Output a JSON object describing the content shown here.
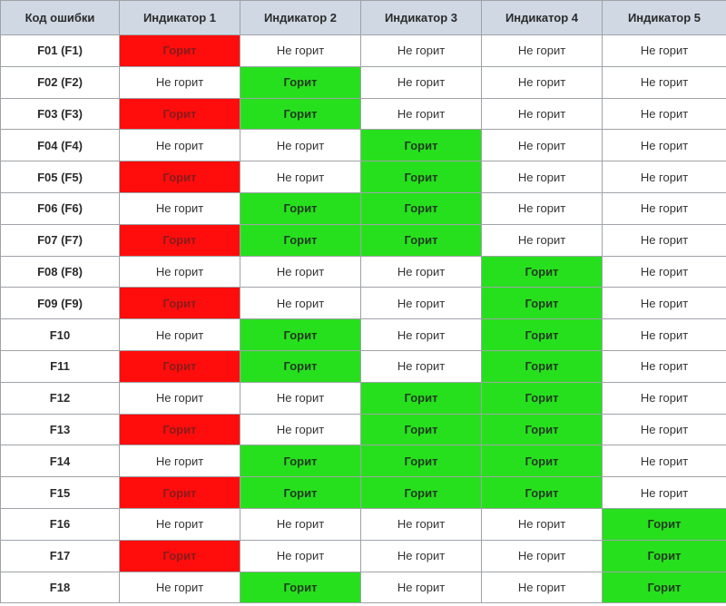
{
  "table": {
    "headers": [
      "Код ошибки",
      "Индикатор 1",
      "Индикатор 2",
      "Индикатор 3",
      "Индикатор 4",
      "Индикатор 5"
    ],
    "colors": {
      "header_bg": "#cfd8e3",
      "indicator1_on": "#ff0d0d",
      "indicators_on": "#27e01d",
      "off_bg": "#ffffff"
    },
    "rows": [
      {
        "code": "F01 (F1)",
        "cells": [
          "Горит",
          "Не горит",
          "Не горит",
          "Не горит",
          "Не горит"
        ]
      },
      {
        "code": "F02 (F2)",
        "cells": [
          "Не горит",
          "Горит",
          "Не горит",
          "Не горит",
          "Не горит"
        ]
      },
      {
        "code": "F03 (F3)",
        "cells": [
          "Горит",
          "Горит",
          "Не горит",
          "Не горит",
          "Не горит"
        ]
      },
      {
        "code": "F04 (F4)",
        "cells": [
          "Не горит",
          "Не горит",
          "Горит",
          "Не горит",
          "Не горит"
        ]
      },
      {
        "code": "F05 (F5)",
        "cells": [
          "Горит",
          "Не горит",
          "Горит",
          "Не горит",
          "Не горит"
        ]
      },
      {
        "code": "F06 (F6)",
        "cells": [
          "Не горит",
          "Горит",
          "Горит",
          "Не горит",
          "Не горит"
        ]
      },
      {
        "code": "F07 (F7)",
        "cells": [
          "Горит",
          "Горит",
          "Горит",
          "Не горит",
          "Не горит"
        ]
      },
      {
        "code": "F08 (F8)",
        "cells": [
          "Не горит",
          "Не горит",
          "Не горит",
          "Горит",
          "Не горит"
        ]
      },
      {
        "code": "F09 (F9)",
        "cells": [
          "Горит",
          "Не горит",
          "Не горит",
          "Горит",
          "Не горит"
        ]
      },
      {
        "code": "F10",
        "cells": [
          "Не горит",
          "Горит",
          "Не горит",
          "Горит",
          "Не горит"
        ]
      },
      {
        "code": "F11",
        "cells": [
          "Горит",
          "Горит",
          "Не горит",
          "Горит",
          "Не горит"
        ]
      },
      {
        "code": "F12",
        "cells": [
          "Не горит",
          "Не горит",
          "Горит",
          "Горит",
          "Не горит"
        ]
      },
      {
        "code": "F13",
        "cells": [
          "Горит",
          "Не горит",
          "Горит",
          "Горит",
          "Не горит"
        ]
      },
      {
        "code": "F14",
        "cells": [
          "Не горит",
          "Горит",
          "Горит",
          "Горит",
          "Не горит"
        ]
      },
      {
        "code": "F15",
        "cells": [
          "Горит",
          "Горит",
          "Горит",
          "Горит",
          "Не горит"
        ]
      },
      {
        "code": "F16",
        "cells": [
          "Не горит",
          "Не горит",
          "Не горит",
          "Не горит",
          "Горит"
        ]
      },
      {
        "code": "F17",
        "cells": [
          "Горит",
          "Не горит",
          "Не горит",
          "Не горит",
          "Горит"
        ]
      },
      {
        "code": "F18",
        "cells": [
          "Не горит",
          "Горит",
          "Не горит",
          "Не горит",
          "Горит"
        ]
      }
    ]
  }
}
